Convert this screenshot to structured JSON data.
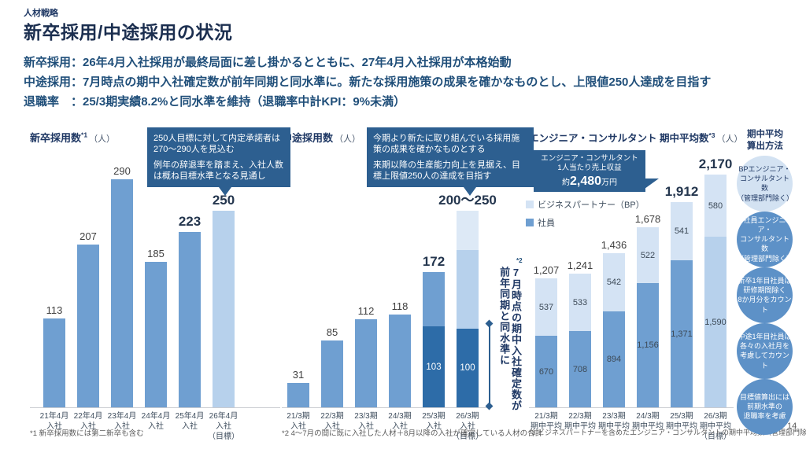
{
  "page": {
    "eyebrow": "人材戦略",
    "title": "新卒採用/中途採用の状況",
    "page_number": "14"
  },
  "summary": [
    "新卒採用：26年4月入社採用が最終局面に差し掛かるとともに、27年4月入社採用が本格始動",
    "中途採用：7月時点の期中入社確定数が前年同期と同水準に。新たな採用施策の成果を確かなものとし、上限値250人達成を目指す",
    "退職率　：25/3期実績8.2%と同水準を維持（退職率中計KPI：9%未満）"
  ],
  "colors": {
    "title_navy": "#1b2e4f",
    "navy": "#1f3864",
    "summary_blue": "#1f4e79",
    "callout_bg": "#2d5f90",
    "label_gray": "#404040",
    "footnote_gray": "#595959",
    "axis_gray": "#c9ccd1",
    "circle_blue": "#5d91c7",
    "circle_light": "#d3e2f2",
    "bars": {
      "medium": "#6f9fd1",
      "dark": "#2d6ca8",
      "light": "#b7d1ec",
      "lightest": "#dde9f6",
      "bp": "#d4e3f4"
    }
  },
  "chart_data": [
    {
      "type": "bar",
      "title": "新卒採用数",
      "title_note": "*1",
      "unit": "（人）",
      "ylim": [
        0,
        300
      ],
      "categories": [
        "21年4月\n入社",
        "22年4月\n入社",
        "23年4月\n入社",
        "24年4月\n入社",
        "25年4月\n入社",
        "26年4月\n入社\n（目標）"
      ],
      "bars": [
        {
          "label": "113",
          "bold": false,
          "segments": [
            {
              "value": 113,
              "color": "medium"
            }
          ]
        },
        {
          "label": "207",
          "bold": false,
          "segments": [
            {
              "value": 207,
              "color": "medium"
            }
          ]
        },
        {
          "label": "290",
          "bold": false,
          "segments": [
            {
              "value": 290,
              "color": "medium"
            }
          ]
        },
        {
          "label": "185",
          "bold": false,
          "segments": [
            {
              "value": 185,
              "color": "medium"
            }
          ]
        },
        {
          "label": "223",
          "bold": true,
          "segments": [
            {
              "value": 223,
              "color": "medium"
            }
          ]
        },
        {
          "label": "250",
          "bold": true,
          "segments": [
            {
              "value": 250,
              "color": "light"
            }
          ]
        }
      ],
      "callout": [
        "250人目標に対して内定承諾者は270〜290人を見込む",
        "例年の辞退率を踏まえ、入社人数は概ね目標水準となる見通し"
      ],
      "footnote": "*1 新卒採用数には第二新卒も含む"
    },
    {
      "type": "stacked-bar",
      "title": "中途採用数",
      "title_note": "",
      "unit": "（人）",
      "ylim": [
        0,
        300
      ],
      "categories": [
        "21/3期\n入社",
        "22/3期\n入社",
        "23/3期\n入社",
        "24/3期\n入社",
        "25/3期\n入社",
        "26/3期\n入社\n（目標）"
      ],
      "bars": [
        {
          "label": "31",
          "bold": false,
          "segments": [
            {
              "value": 31,
              "color": "medium"
            }
          ]
        },
        {
          "label": "85",
          "bold": false,
          "segments": [
            {
              "value": 85,
              "color": "medium"
            }
          ]
        },
        {
          "label": "112",
          "bold": false,
          "segments": [
            {
              "value": 112,
              "color": "medium"
            }
          ]
        },
        {
          "label": "118",
          "bold": false,
          "segments": [
            {
              "value": 118,
              "color": "medium"
            }
          ]
        },
        {
          "label": "172",
          "bold": true,
          "segments": [
            {
              "value": 103,
              "color": "dark",
              "text": "103"
            },
            {
              "value": 69,
              "color": "medium"
            }
          ]
        },
        {
          "label": "200〜250",
          "bold": true,
          "segments": [
            {
              "value": 100,
              "color": "dark",
              "text": "100"
            },
            {
              "value": 100,
              "color": "light"
            },
            {
              "value": 50,
              "color": "lightest"
            }
          ]
        }
      ],
      "annotation": {
        "ref": "*2",
        "text": "7月時点の期中入社確定数が前年同期と同水準に"
      },
      "callout": [
        "今期より新たに取り組んでいる採用施策の成果を確かなものとする",
        "来期以降の生産能力向上を見据え、目標上限値250人の達成を目指す"
      ],
      "footnote": "*2 4〜7月の間に既に入社した人材＋8月以降の入社が確定している人材の合計"
    },
    {
      "type": "stacked-bar",
      "title": "エンジニア・コンサルタント 期中平均数",
      "title_note": "*3",
      "unit": "（人）",
      "ylim": [
        0,
        2300
      ],
      "legend": [
        {
          "label": "ビジネスパートナー（BP）",
          "color": "bp"
        },
        {
          "label": "社員",
          "color": "medium"
        }
      ],
      "categories": [
        "21/3期\n期中平均",
        "22/3期\n期中平均",
        "23/3期\n期中平均",
        "24/3期\n期中平均",
        "25/3期\n期中平均",
        "26/3期\n期中平均\n（目標）"
      ],
      "bars": [
        {
          "label": "1,207",
          "bold": false,
          "segments": [
            {
              "value": 670,
              "color": "medium",
              "text": "670"
            },
            {
              "value": 537,
              "color": "bp",
              "text": "537"
            }
          ]
        },
        {
          "label": "1,241",
          "bold": false,
          "segments": [
            {
              "value": 708,
              "color": "medium",
              "text": "708"
            },
            {
              "value": 533,
              "color": "bp",
              "text": "533"
            }
          ]
        },
        {
          "label": "1,436",
          "bold": false,
          "segments": [
            {
              "value": 894,
              "color": "medium",
              "text": "894"
            },
            {
              "value": 542,
              "color": "bp",
              "text": "542"
            }
          ]
        },
        {
          "label": "1,678",
          "bold": false,
          "segments": [
            {
              "value": 1156,
              "color": "medium",
              "text": "1,156"
            },
            {
              "value": 522,
              "color": "bp",
              "text": "522"
            }
          ]
        },
        {
          "label": "1,912",
          "bold": true,
          "segments": [
            {
              "value": 1371,
              "color": "medium",
              "text": "1,371"
            },
            {
              "value": 541,
              "color": "bp",
              "text": "541"
            }
          ]
        },
        {
          "label": "2,170",
          "bold": true,
          "segments": [
            {
              "value": 1590,
              "color": "light",
              "text": "1,590"
            },
            {
              "value": 580,
              "color": "bp",
              "text": "580"
            }
          ]
        }
      ],
      "callout": {
        "line1": "エンジニア・コンサルタント",
        "line2": "1人当たり売上収益",
        "value_prefix": "約",
        "value": "2,480",
        "value_suffix": "万円"
      },
      "footnote": "*3 ビジネスパートナーを含めたエンジニア・コンサルタントの期中平均数（管理部門除く）"
    }
  ],
  "sidebar": {
    "header": "期中平均\n算出方法",
    "items": [
      {
        "text": "BPエンジニア・\nコンサルタント数\n（管理部門除く）",
        "style": "light"
      },
      {
        "text": "社員エンジニア・\nコンサルタント数\n（管理部門除く）",
        "style": "blue"
      },
      {
        "text": "新卒1年目社員は\n研修期間除く\n8か月分をカウント",
        "style": "blue"
      },
      {
        "text": "中途1年目社員は\n各々の入社月を\n考慮してカウント",
        "style": "blue"
      },
      {
        "text": "目標値算出には\n前期水準の\n退職率を考慮",
        "style": "blue"
      }
    ]
  }
}
